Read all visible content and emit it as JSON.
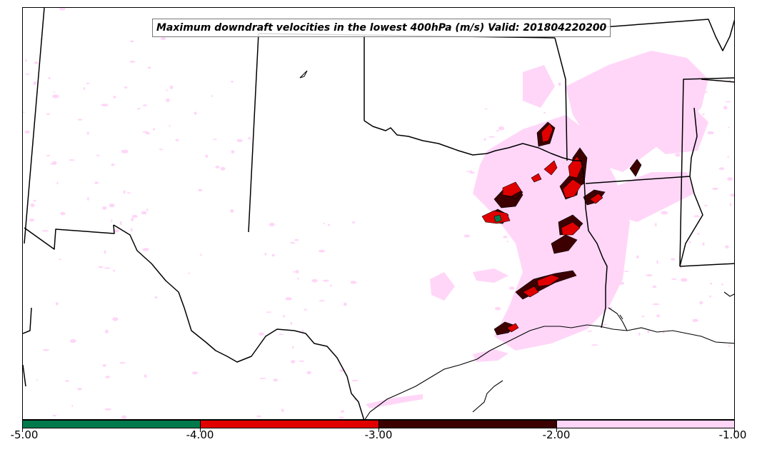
{
  "map": {
    "title": "Maximum downdraft velocities in the lowest 400hPa (m/s) Valid: 201804220200",
    "variable_units": "m/s",
    "layer": "lowest 400hPa",
    "valid_time": "201804220200",
    "region": "Texas and surrounding southern plains states"
  },
  "colorbar": {
    "ticks": [
      "-5.00",
      "-4.00",
      "-3.00",
      "-2.00",
      "-1.00"
    ],
    "range": [
      -5.0,
      -1.0
    ],
    "bins": [
      {
        "from": -5.0,
        "to": -4.0,
        "color": "#007a4d"
      },
      {
        "from": -4.0,
        "to": -3.0,
        "color": "#e00000"
      },
      {
        "from": -3.0,
        "to": -2.0,
        "color": "#3d0000"
      },
      {
        "from": -2.0,
        "to": -1.0,
        "color": "#ffd6f8"
      }
    ]
  },
  "colors": {
    "light_band": "#ffd6f8",
    "moderate": "#3d0000",
    "strong": "#e00000",
    "strongest": "#007a4d",
    "boundary": "#000000"
  }
}
